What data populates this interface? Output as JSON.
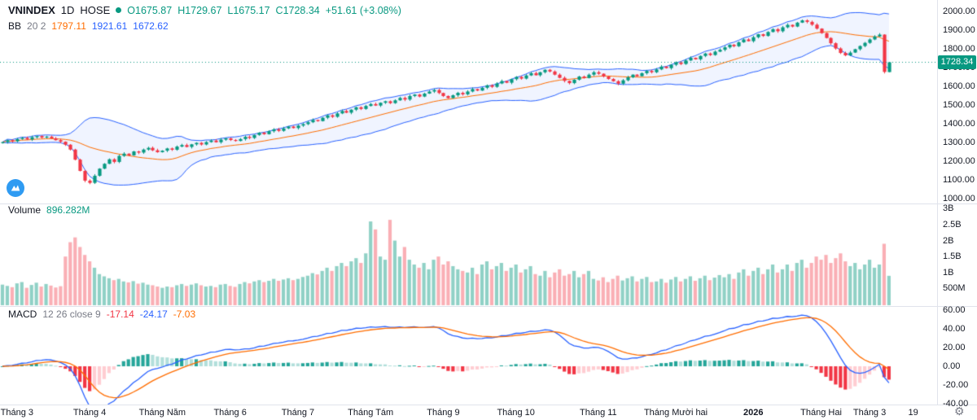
{
  "header": {
    "symbol": "VNINDEX",
    "interval": "1D",
    "exchange": "HOSE",
    "ohlc": {
      "open": "O1675.87",
      "high": "H1729.67",
      "low": "L1675.17",
      "close": "C1728.34",
      "change": "+51.61 (+3.08%)"
    },
    "bb": {
      "name": "BB",
      "params": "20 2",
      "basis": "1797.11",
      "upper": "1921.61",
      "lower": "1672.62"
    }
  },
  "volume_pane": {
    "label": "Volume",
    "value": "896.282M"
  },
  "macd_pane": {
    "label": "MACD",
    "params": "12 26 close 9",
    "histogram": "-17.14",
    "macd": "-24.17",
    "signal": "-7.03"
  },
  "last_price_tag": "1728.34",
  "icons": {
    "settings": "⚙",
    "logo": "mountain-logo"
  },
  "colors": {
    "up": "#089981",
    "down": "#f23645",
    "volume_up": "rgba(8,153,129,0.45)",
    "volume_down": "rgba(242,54,69,0.4)",
    "bb_band": "#2962ff",
    "bb_basis": "#ff6d00",
    "bb_fill": "rgba(41,98,255,0.07)",
    "macd_line": "#2962ff",
    "signal_line": "#ff6d00",
    "hist_grow_above": "#26a69a",
    "hist_fall_above": "#b2dfdb",
    "hist_grow_below": "#ffcdd2",
    "hist_fall_below": "#f23645",
    "axis_text": "#131722",
    "muted_text": "#787b86",
    "divider": "#e0e3eb",
    "last_price_bg": "#089981",
    "last_price_line": "#089981"
  },
  "chart_data": [
    {
      "type": "candlestick",
      "name": "VNINDEX 1D HOSE",
      "ylim": [
        1000,
        2060
      ],
      "y_ticks": [
        "2000.00",
        "1900.00",
        "1800.00",
        "1700.00",
        "1600.00",
        "1500.00",
        "1400.00",
        "1300.00",
        "1200.00",
        "1100.00",
        "1000.00"
      ],
      "time_ticks": [
        {
          "label": "Tháng 3",
          "bar": 3
        },
        {
          "label": "Tháng 4",
          "bar": 18
        },
        {
          "label": "Tháng Năm",
          "bar": 33
        },
        {
          "label": "Tháng 6",
          "bar": 47
        },
        {
          "label": "Tháng 7",
          "bar": 61
        },
        {
          "label": "Tháng Tám",
          "bar": 76
        },
        {
          "label": "Tháng 9",
          "bar": 91
        },
        {
          "label": "Tháng 10",
          "bar": 106
        },
        {
          "label": "Tháng 11",
          "bar": 123
        },
        {
          "label": "Tháng Mười hai",
          "bar": 139
        },
        {
          "label": "2026",
          "bar": 155,
          "bold": true
        },
        {
          "label": "Tháng Hai",
          "bar": 169
        },
        {
          "label": "Tháng 3",
          "bar": 179
        },
        {
          "label": "19",
          "bar": 188
        }
      ],
      "indicator": {
        "name": "BB",
        "period": 20,
        "stddev": 2
      },
      "last_bar": {
        "o": 1675.87,
        "h": 1729.67,
        "l": 1675.17,
        "c": 1728.34
      },
      "closes": [
        1302,
        1312,
        1306,
        1318,
        1324,
        1316,
        1328,
        1334,
        1326,
        1331,
        1322,
        1312,
        1304,
        1288,
        1262,
        1208,
        1148,
        1096,
        1084,
        1122,
        1160,
        1186,
        1210,
        1196,
        1228,
        1240,
        1231,
        1252,
        1246,
        1262,
        1271,
        1258,
        1248,
        1256,
        1268,
        1261,
        1278,
        1286,
        1276,
        1290,
        1298,
        1289,
        1302,
        1310,
        1301,
        1315,
        1322,
        1313,
        1308,
        1318,
        1330,
        1324,
        1340,
        1352,
        1344,
        1360,
        1370,
        1362,
        1375,
        1385,
        1377,
        1390,
        1398,
        1408,
        1420,
        1414,
        1432,
        1445,
        1437,
        1455,
        1468,
        1459,
        1475,
        1488,
        1479,
        1495,
        1505,
        1497,
        1512,
        1520,
        1510,
        1525,
        1538,
        1529,
        1548,
        1556,
        1545,
        1561,
        1572,
        1580,
        1564,
        1548,
        1537,
        1552,
        1565,
        1557,
        1572,
        1585,
        1577,
        1592,
        1605,
        1597,
        1615,
        1628,
        1619,
        1638,
        1650,
        1641,
        1658,
        1670,
        1659,
        1675,
        1688,
        1679,
        1662,
        1645,
        1629,
        1617,
        1635,
        1652,
        1644,
        1662,
        1675,
        1667,
        1652,
        1639,
        1627,
        1614,
        1632,
        1648,
        1662,
        1654,
        1670,
        1682,
        1675,
        1690,
        1705,
        1697,
        1715,
        1728,
        1719,
        1738,
        1752,
        1744,
        1762,
        1775,
        1767,
        1785,
        1795,
        1808,
        1822,
        1814,
        1835,
        1850,
        1841,
        1862,
        1878,
        1869,
        1890,
        1905,
        1894,
        1915,
        1928,
        1919,
        1940,
        1952,
        1944,
        1929,
        1908,
        1884,
        1858,
        1830,
        1802,
        1778,
        1765,
        1780,
        1798,
        1815,
        1832,
        1850,
        1866,
        1876,
        1676.73,
        1728.34
      ]
    },
    {
      "type": "bar",
      "name": "Volume",
      "unit": "millions",
      "ylim": [
        0,
        3000
      ],
      "y_ticks": [
        {
          "label": "3B",
          "value": 3000
        },
        {
          "label": "2.5B",
          "value": 2500
        },
        {
          "label": "2B",
          "value": 2000
        },
        {
          "label": "1.5B",
          "value": 1500
        },
        {
          "label": "1B",
          "value": 1000
        },
        {
          "label": "500M",
          "value": 500
        }
      ],
      "values": [
        620,
        580,
        540,
        660,
        700,
        520,
        610,
        680,
        560,
        640,
        590,
        530,
        570,
        1500,
        1950,
        2100,
        1800,
        1550,
        1350,
        1150,
        950,
        880,
        820,
        760,
        800,
        720,
        690,
        730,
        650,
        680,
        620,
        600,
        560,
        520,
        560,
        540,
        600,
        640,
        580,
        620,
        660,
        600,
        560,
        580,
        540,
        620,
        640,
        580,
        550,
        640,
        700,
        660,
        720,
        760,
        700,
        740,
        800,
        740,
        780,
        820,
        760,
        800,
        860,
        900,
        980,
        940,
        1050,
        1150,
        1050,
        1200,
        1300,
        1200,
        1350,
        1450,
        1300,
        1600,
        2600,
        2350,
        1500,
        1400,
        2650,
        2000,
        1500,
        1800,
        1400,
        1250,
        1150,
        1300,
        1100,
        1400,
        1500,
        1250,
        1350,
        1200,
        1100,
        1050,
        1000,
        1150,
        950,
        1250,
        1350,
        1100,
        1200,
        1300,
        1050,
        1150,
        1250,
        1000,
        1100,
        1200,
        950,
        900,
        1050,
        850,
        1000,
        1100,
        900,
        950,
        1050,
        850,
        950,
        1050,
        800,
        750,
        850,
        700,
        800,
        900,
        750,
        820,
        880,
        720,
        800,
        860,
        700,
        720,
        800,
        680,
        780,
        860,
        720,
        800,
        880,
        740,
        820,
        900,
        760,
        840,
        920,
        850,
        950,
        800,
        1000,
        1100,
        900,
        1050,
        1150,
        950,
        1100,
        1250,
        1000,
        1100,
        1250,
        1050,
        1300,
        1400,
        1150,
        1300,
        1500,
        1400,
        1550,
        1300,
        1450,
        1600,
        1350,
        1200,
        1300,
        1100,
        1250,
        1400,
        1150,
        1250,
        1900,
        896.282
      ]
    },
    {
      "type": "macd",
      "name": "MACD 12 26 close 9",
      "fast": 12,
      "slow": 26,
      "signal": 9,
      "source": "close",
      "ylim": [
        -45,
        62
      ],
      "y_ticks": [
        "60.00",
        "40.00",
        "20.00",
        "0.00",
        "-20.00",
        "-40.00"
      ],
      "last_values": {
        "histogram": -17.14,
        "macd": -24.17,
        "signal": -7.03
      }
    }
  ]
}
